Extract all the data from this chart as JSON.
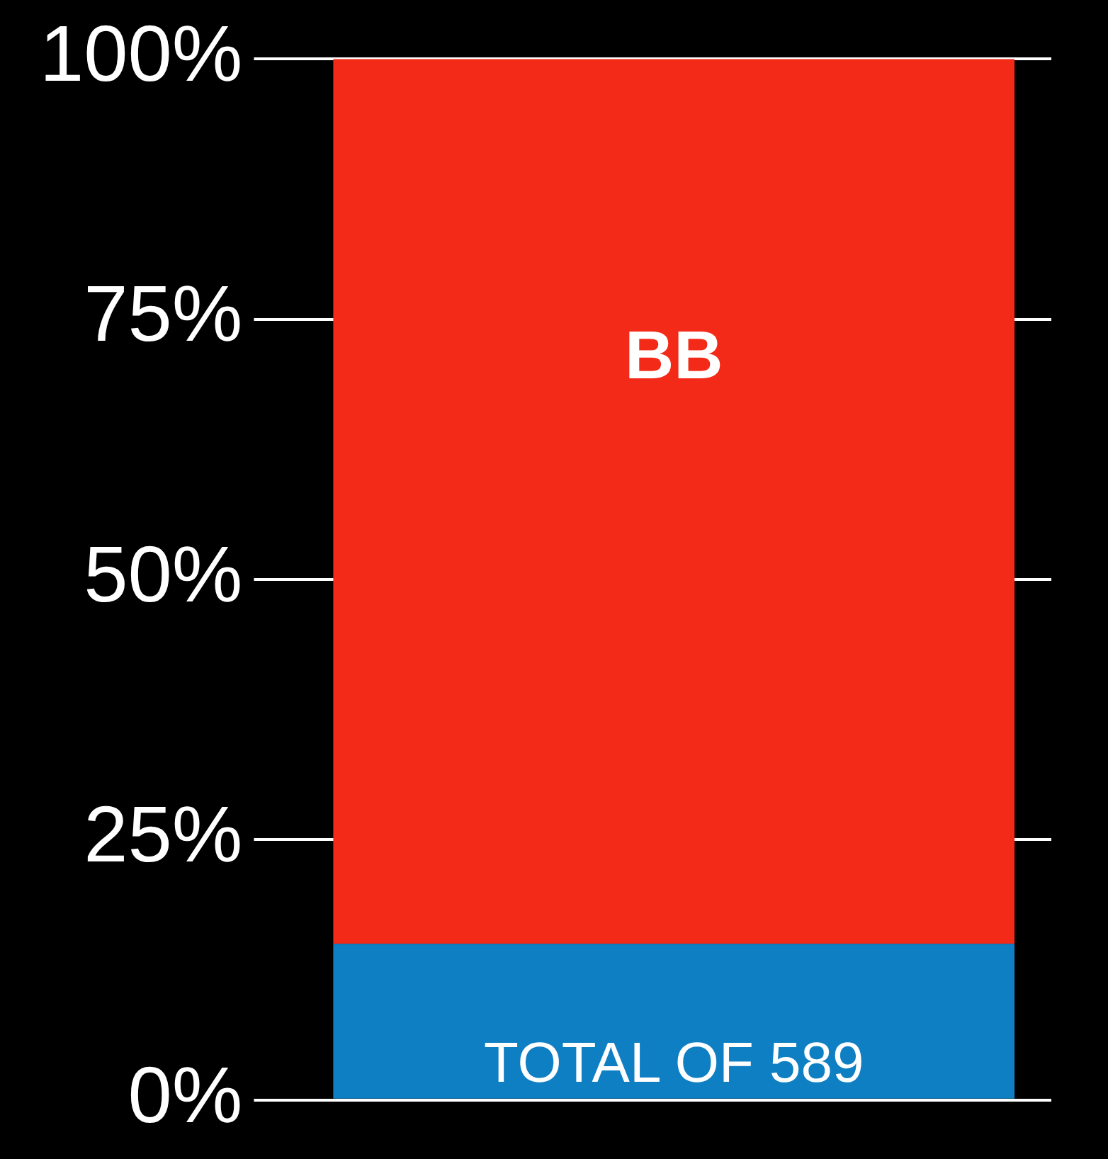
{
  "chart_data": {
    "type": "bar",
    "stacked": true,
    "categories": [
      null
    ],
    "series": [
      {
        "color": "#0f7fc4",
        "values": [
          15
        ]
      },
      {
        "name": "BB",
        "color": "#f42a18",
        "values": [
          85
        ]
      }
    ],
    "ylim": [
      0,
      100
    ],
    "yticks": [
      {
        "value": 0,
        "label": "0%"
      },
      {
        "value": 25,
        "label": "25%"
      },
      {
        "value": 50,
        "label": "50%"
      },
      {
        "value": 75,
        "label": "75%"
      },
      {
        "value": 100,
        "label": "100%"
      }
    ],
    "grid": "y",
    "legend": false,
    "annotations": [
      "TOTAL OF 589"
    ]
  }
}
